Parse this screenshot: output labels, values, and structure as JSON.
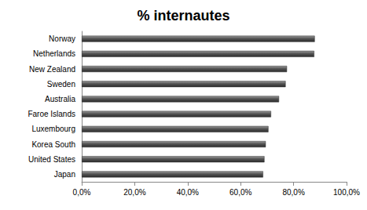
{
  "chart_data": {
    "type": "bar",
    "orientation": "horizontal",
    "title": "% internautes",
    "categories": [
      "Norway",
      "Netherlands",
      "New Zealand",
      "Sweden",
      "Australia",
      "Faroe Islands",
      "Luxembourg",
      "Korea South",
      "United States",
      "Japan"
    ],
    "values": [
      88.0,
      87.8,
      77.5,
      77.0,
      74.5,
      71.5,
      70.5,
      69.5,
      69.0,
      68.5
    ],
    "color": "#555555",
    "xlim": [
      0,
      100
    ],
    "xticks": [
      {
        "value": 0,
        "label": "0,0%"
      },
      {
        "value": 20,
        "label": "20,0%"
      },
      {
        "value": 40,
        "label": "40,0%"
      },
      {
        "value": 60,
        "label": "60,0%"
      },
      {
        "value": 80,
        "label": "80,0%"
      },
      {
        "value": 100,
        "label": "100,0%"
      }
    ],
    "grid": false
  }
}
